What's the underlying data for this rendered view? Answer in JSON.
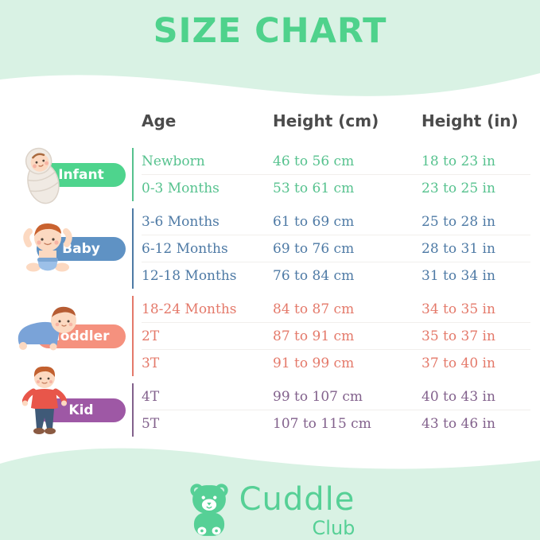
{
  "page": {
    "title": "SIZE CHART",
    "background_color": "#d9f2e4",
    "card_color": "#ffffff",
    "accent_green": "#4fd28c"
  },
  "table": {
    "headers": {
      "age": "Age",
      "height_cm": "Height (cm)",
      "height_in": "Height (in)"
    },
    "header_color": "#4b4b4b",
    "groups": [
      {
        "label": "Infant",
        "pill_color": "#4ed48d",
        "text_color": "#56c28e",
        "icon": "swaddled-infant-illustration",
        "rows": [
          {
            "age": "Newborn",
            "cm": "46 to 56 cm",
            "in": "18 to 23 in"
          },
          {
            "age": "0-3 Months",
            "cm": "53 to 61 cm",
            "in": "23 to 25 in"
          }
        ]
      },
      {
        "label": "Baby",
        "pill_color": "#5f92c4",
        "text_color": "#4e7aa5",
        "icon": "sitting-baby-illustration",
        "rows": [
          {
            "age": "3-6 Months",
            "cm": "61 to 69 cm",
            "in": "25 to 28 in"
          },
          {
            "age": "6-12 Months",
            "cm": "69 to 76 cm",
            "in": "28 to 31 in"
          },
          {
            "age": "12-18 Months",
            "cm": "76 to 84 cm",
            "in": "31 to 34 in"
          }
        ]
      },
      {
        "label": "Toddler",
        "pill_color": "#f5917e",
        "text_color": "#e4796a",
        "icon": "crawling-toddler-illustration",
        "rows": [
          {
            "age": "18-24 Months",
            "cm": "84 to 87 cm",
            "in": "34 to 35 in"
          },
          {
            "age": "2T",
            "cm": "87 to 91 cm",
            "in": "35 to 37 in"
          },
          {
            "age": "3T",
            "cm": "91 to 99 cm",
            "in": "37 to 40 in"
          }
        ]
      },
      {
        "label": "Kid",
        "pill_color": "#9e58a5",
        "text_color": "#82618c",
        "icon": "standing-kid-illustration",
        "rows": [
          {
            "age": "4T",
            "cm": "99 to 107 cm",
            "in": "40 to 43 in"
          },
          {
            "age": "5T",
            "cm": "107 to 115 cm",
            "in": "43 to 46 in"
          }
        ]
      }
    ]
  },
  "brand": {
    "name": "Cuddle",
    "sub": "Club",
    "color": "#56d096",
    "icon": "teddy-bear-icon"
  },
  "chart_data": {
    "type": "table",
    "title": "SIZE CHART",
    "columns": [
      "Age",
      "Height (cm)",
      "Height (in)"
    ],
    "rows": [
      {
        "group": "Infant",
        "age": "Newborn",
        "height_cm": "46 to 56",
        "height_in": "18 to 23"
      },
      {
        "group": "Infant",
        "age": "0-3 Months",
        "height_cm": "53 to 61",
        "height_in": "23 to 25"
      },
      {
        "group": "Baby",
        "age": "3-6 Months",
        "height_cm": "61 to 69",
        "height_in": "25 to 28"
      },
      {
        "group": "Baby",
        "age": "6-12 Months",
        "height_cm": "69 to 76",
        "height_in": "28 to 31"
      },
      {
        "group": "Baby",
        "age": "12-18 Months",
        "height_cm": "76 to 84",
        "height_in": "31 to 34"
      },
      {
        "group": "Toddler",
        "age": "18-24 Months",
        "height_cm": "84 to 87",
        "height_in": "34 to 35"
      },
      {
        "group": "Toddler",
        "age": "2T",
        "height_cm": "87 to 91",
        "height_in": "35 to 37"
      },
      {
        "group": "Toddler",
        "age": "3T",
        "height_cm": "91 to 99",
        "height_in": "37 to 40"
      },
      {
        "group": "Kid",
        "age": "4T",
        "height_cm": "99 to 107",
        "height_in": "40 to 43"
      },
      {
        "group": "Kid",
        "age": "5T",
        "height_cm": "107 to 115",
        "height_in": "43 to 46"
      }
    ]
  }
}
